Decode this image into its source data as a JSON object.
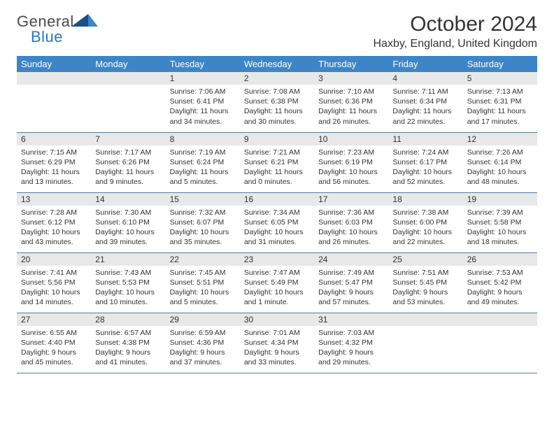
{
  "logo": {
    "text1": "General",
    "text2": "Blue"
  },
  "title": "October 2024",
  "location": "Haxby, England, United Kingdom",
  "colors": {
    "header_bg": "#3d85c6",
    "header_text": "#ffffff",
    "daynum_bg": "#e8e8e8",
    "text": "#333333",
    "border": "#5a7a9a",
    "logo_gray": "#4a4a4a",
    "logo_blue": "#2c76b8"
  },
  "day_headers": [
    "Sunday",
    "Monday",
    "Tuesday",
    "Wednesday",
    "Thursday",
    "Friday",
    "Saturday"
  ],
  "weeks": [
    [
      null,
      null,
      {
        "n": "1",
        "sr": "Sunrise: 7:06 AM",
        "ss": "Sunset: 6:41 PM",
        "dl": "Daylight: 11 hours and 34 minutes."
      },
      {
        "n": "2",
        "sr": "Sunrise: 7:08 AM",
        "ss": "Sunset: 6:38 PM",
        "dl": "Daylight: 11 hours and 30 minutes."
      },
      {
        "n": "3",
        "sr": "Sunrise: 7:10 AM",
        "ss": "Sunset: 6:36 PM",
        "dl": "Daylight: 11 hours and 26 minutes."
      },
      {
        "n": "4",
        "sr": "Sunrise: 7:11 AM",
        "ss": "Sunset: 6:34 PM",
        "dl": "Daylight: 11 hours and 22 minutes."
      },
      {
        "n": "5",
        "sr": "Sunrise: 7:13 AM",
        "ss": "Sunset: 6:31 PM",
        "dl": "Daylight: 11 hours and 17 minutes."
      }
    ],
    [
      {
        "n": "6",
        "sr": "Sunrise: 7:15 AM",
        "ss": "Sunset: 6:29 PM",
        "dl": "Daylight: 11 hours and 13 minutes."
      },
      {
        "n": "7",
        "sr": "Sunrise: 7:17 AM",
        "ss": "Sunset: 6:26 PM",
        "dl": "Daylight: 11 hours and 9 minutes."
      },
      {
        "n": "8",
        "sr": "Sunrise: 7:19 AM",
        "ss": "Sunset: 6:24 PM",
        "dl": "Daylight: 11 hours and 5 minutes."
      },
      {
        "n": "9",
        "sr": "Sunrise: 7:21 AM",
        "ss": "Sunset: 6:21 PM",
        "dl": "Daylight: 11 hours and 0 minutes."
      },
      {
        "n": "10",
        "sr": "Sunrise: 7:23 AM",
        "ss": "Sunset: 6:19 PM",
        "dl": "Daylight: 10 hours and 56 minutes."
      },
      {
        "n": "11",
        "sr": "Sunrise: 7:24 AM",
        "ss": "Sunset: 6:17 PM",
        "dl": "Daylight: 10 hours and 52 minutes."
      },
      {
        "n": "12",
        "sr": "Sunrise: 7:26 AM",
        "ss": "Sunset: 6:14 PM",
        "dl": "Daylight: 10 hours and 48 minutes."
      }
    ],
    [
      {
        "n": "13",
        "sr": "Sunrise: 7:28 AM",
        "ss": "Sunset: 6:12 PM",
        "dl": "Daylight: 10 hours and 43 minutes."
      },
      {
        "n": "14",
        "sr": "Sunrise: 7:30 AM",
        "ss": "Sunset: 6:10 PM",
        "dl": "Daylight: 10 hours and 39 minutes."
      },
      {
        "n": "15",
        "sr": "Sunrise: 7:32 AM",
        "ss": "Sunset: 6:07 PM",
        "dl": "Daylight: 10 hours and 35 minutes."
      },
      {
        "n": "16",
        "sr": "Sunrise: 7:34 AM",
        "ss": "Sunset: 6:05 PM",
        "dl": "Daylight: 10 hours and 31 minutes."
      },
      {
        "n": "17",
        "sr": "Sunrise: 7:36 AM",
        "ss": "Sunset: 6:03 PM",
        "dl": "Daylight: 10 hours and 26 minutes."
      },
      {
        "n": "18",
        "sr": "Sunrise: 7:38 AM",
        "ss": "Sunset: 6:00 PM",
        "dl": "Daylight: 10 hours and 22 minutes."
      },
      {
        "n": "19",
        "sr": "Sunrise: 7:39 AM",
        "ss": "Sunset: 5:58 PM",
        "dl": "Daylight: 10 hours and 18 minutes."
      }
    ],
    [
      {
        "n": "20",
        "sr": "Sunrise: 7:41 AM",
        "ss": "Sunset: 5:56 PM",
        "dl": "Daylight: 10 hours and 14 minutes."
      },
      {
        "n": "21",
        "sr": "Sunrise: 7:43 AM",
        "ss": "Sunset: 5:53 PM",
        "dl": "Daylight: 10 hours and 10 minutes."
      },
      {
        "n": "22",
        "sr": "Sunrise: 7:45 AM",
        "ss": "Sunset: 5:51 PM",
        "dl": "Daylight: 10 hours and 5 minutes."
      },
      {
        "n": "23",
        "sr": "Sunrise: 7:47 AM",
        "ss": "Sunset: 5:49 PM",
        "dl": "Daylight: 10 hours and 1 minute."
      },
      {
        "n": "24",
        "sr": "Sunrise: 7:49 AM",
        "ss": "Sunset: 5:47 PM",
        "dl": "Daylight: 9 hours and 57 minutes."
      },
      {
        "n": "25",
        "sr": "Sunrise: 7:51 AM",
        "ss": "Sunset: 5:45 PM",
        "dl": "Daylight: 9 hours and 53 minutes."
      },
      {
        "n": "26",
        "sr": "Sunrise: 7:53 AM",
        "ss": "Sunset: 5:42 PM",
        "dl": "Daylight: 9 hours and 49 minutes."
      }
    ],
    [
      {
        "n": "27",
        "sr": "Sunrise: 6:55 AM",
        "ss": "Sunset: 4:40 PM",
        "dl": "Daylight: 9 hours and 45 minutes."
      },
      {
        "n": "28",
        "sr": "Sunrise: 6:57 AM",
        "ss": "Sunset: 4:38 PM",
        "dl": "Daylight: 9 hours and 41 minutes."
      },
      {
        "n": "29",
        "sr": "Sunrise: 6:59 AM",
        "ss": "Sunset: 4:36 PM",
        "dl": "Daylight: 9 hours and 37 minutes."
      },
      {
        "n": "30",
        "sr": "Sunrise: 7:01 AM",
        "ss": "Sunset: 4:34 PM",
        "dl": "Daylight: 9 hours and 33 minutes."
      },
      {
        "n": "31",
        "sr": "Sunrise: 7:03 AM",
        "ss": "Sunset: 4:32 PM",
        "dl": "Daylight: 9 hours and 29 minutes."
      },
      null,
      null
    ]
  ]
}
